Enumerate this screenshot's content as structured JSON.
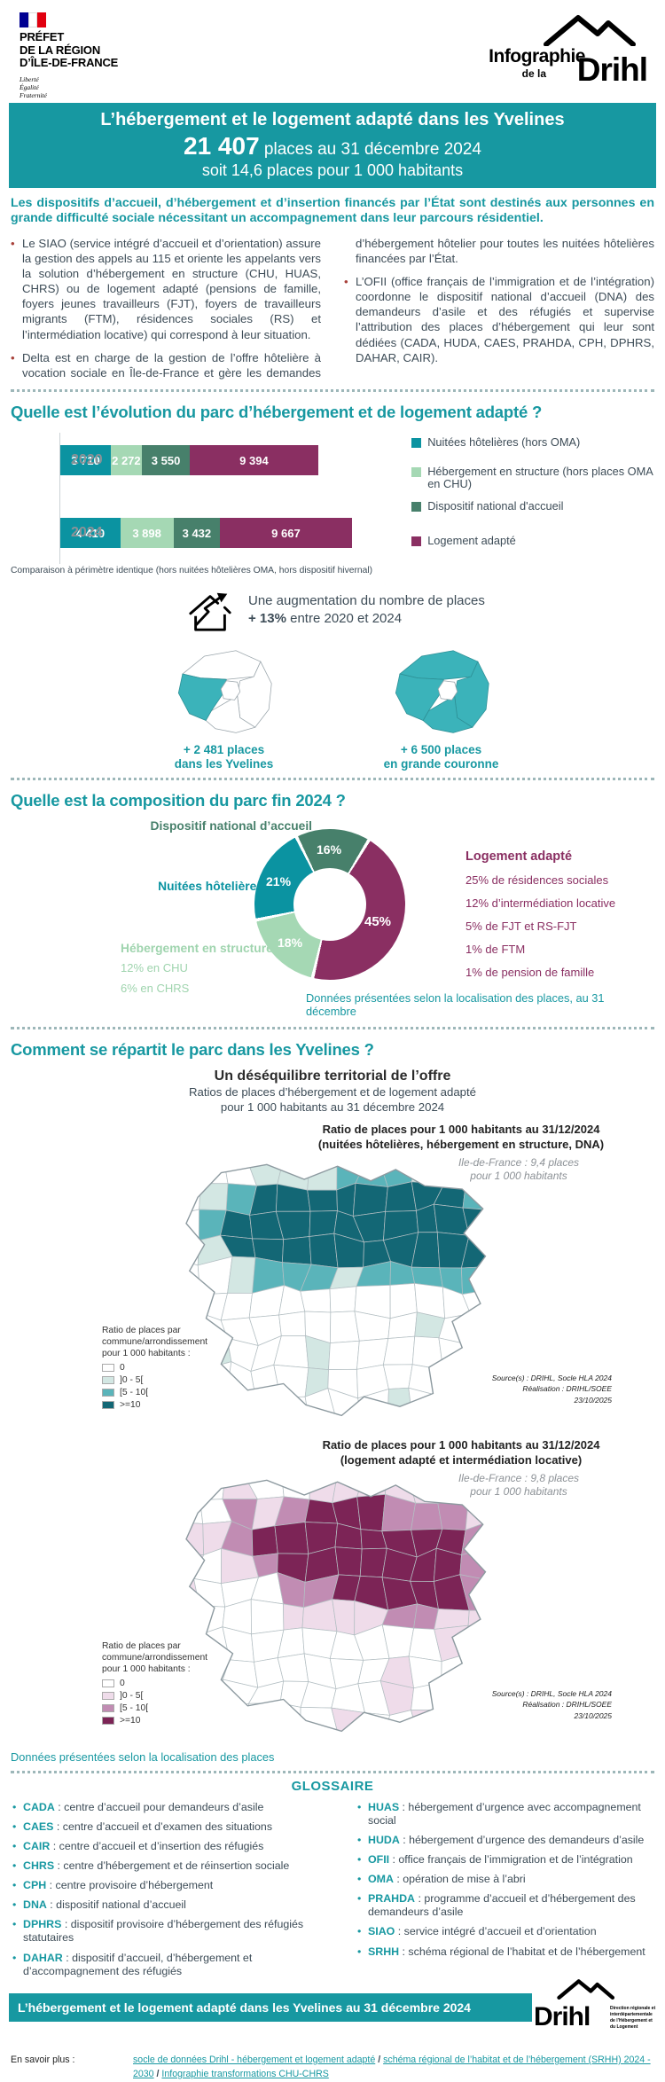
{
  "colors": {
    "teal": "#1798a1",
    "purple": "#8a2f62",
    "green_dark": "#47806b",
    "green_light": "#a5d8b4",
    "text": "#3d4c57",
    "bullet_red": "#a8413a"
  },
  "header": {
    "prefet_lines": [
      "PRÉFET",
      "DE LA RÉGION",
      "D’ÎLE-DE-FRANCE"
    ],
    "motto": [
      "Liberté",
      "Égalité",
      "Fraternité"
    ],
    "infographie_l1": "Infographie",
    "infographie_l2": "de la",
    "infographie_l3": "Drihl"
  },
  "banner": {
    "title": "L’hébergement et le logement adapté dans les Yvelines",
    "count": "21 407",
    "count_suffix": " places au 31 décembre 2024",
    "subtitle": "soit 14,6 places pour 1 000 habitants"
  },
  "intro": {
    "lead": "Les dispositifs d’accueil, d’hébergement et d’insertion financés par l’État sont destinés aux personnes en grande difficulté sociale nécessitant un accompagnement dans leur parcours résidentiel.",
    "bullets": [
      "Le SIAO (service intégré d’accueil et d’orientation) assure la gestion des appels au 115 et oriente les appelants vers la solution d’hébergement en structure (CHU, HUAS, CHRS) ou de logement adapté (pensions de famille, foyers jeunes travailleurs (FJT), foyers de travailleurs migrants (FTM), résidences sociales (RS) et l’intermédiation locative) qui correspond à leur situation.",
      "Delta est en charge de la gestion de l’offre hôtelière à vocation sociale en Île-de-France et gère les demandes d’hébergement hôtelier pour toutes les nuitées hôtelières financées par l’État.",
      "L’OFII (office français de l’immigration et de l’intégration) coordonne le dispositif national d’accueil (DNA) des demandeurs d’asile et des réfugiés et supervise l’attribution des places d’hébergement qui leur sont dédiées (CADA, HUDA, CAES, PRAHDA, CPH, DPHRS, DAHAR, CAIR)."
    ]
  },
  "section_evolution": {
    "title": "Quelle est l’évolution du parc d’hébergement et de logement adapté ?",
    "rows": [
      {
        "year": "2020",
        "values": [
          "3 710",
          "2 272",
          "3 550",
          "9 394"
        ]
      },
      {
        "year": "2024",
        "values": [
          "4 410",
          "3 898",
          "3 432",
          "9 667"
        ]
      }
    ],
    "legend": [
      "Nuitées hôtelières (hors OMA)",
      "Hébergement en structure (hors places OMA en CHU)",
      "Dispositif national d'accueil",
      "Logement adapté"
    ],
    "note": "Comparaison à périmètre identique (hors nuitées hôtelières OMA, hors dispositif hivernal)",
    "increase_line1": "Une augmentation du nombre de places",
    "increase_bold": "+ 13%",
    "increase_rest": " entre 2020 et 2024",
    "map_stats": [
      {
        "value": "+ 2 481 places",
        "label": "dans les Yvelines"
      },
      {
        "value": "+ 6 500 places",
        "label": "en grande couronne"
      }
    ]
  },
  "section_composition": {
    "title": "Quelle est la composition du parc fin 2024 ?",
    "label_dna": "Dispositif national d’accueil",
    "label_hotel": "Nuitées hôtelières",
    "label_structure": "Hébergement en structure",
    "structure_sub": [
      "12% en CHU",
      "6% en CHRS"
    ],
    "label_adapted": "Logement adapté",
    "adapted_sub": [
      "25% de résidences sociales",
      "12% d’intermédiation locative",
      "5% de FJT et RS-FJT",
      "1% de FTM",
      "1% de pension de famille"
    ],
    "pct": {
      "dna": "16%",
      "hotel": "21%",
      "structure": "18%",
      "adapted": "45%"
    },
    "note": "Données présentées selon la localisation des places, au 31 décembre"
  },
  "section_distribution": {
    "title": "Comment se répartit le parc dans les Yvelines ?",
    "block_title": "Un déséquilibre territorial de l’offre",
    "block_sub_1": "Ratios de places d’hébergement et de logement adapté",
    "block_sub_2": "pour 1 000 habitants au 31 décembre 2024",
    "maps": [
      {
        "title_1": "Ratio de places pour 1 000 habitants au 31/12/2024",
        "title_2": "(nuitées hôtelières, hébergement en structure, DNA)",
        "idf_note_1": "Ile-de-France : 9,4 places",
        "idf_note_2": "pour 1 000 habitants",
        "legend_title_1": "Ratio de places par",
        "legend_title_2": "commune/arrondissement",
        "legend_title_3": "pour 1 000 habitants :",
        "classes": [
          "0",
          "]0 - 5[",
          "[5 - 10[",
          ">=10"
        ],
        "palette": [
          "#ffffff",
          "#d3e7e3",
          "#5ab4ba",
          "#136775"
        ],
        "source_1": "Source(s) : DRIHL, Socle HLA 2024",
        "source_2": "Réalisation : DRIHL/SOEE",
        "source_3": "23/10/2025"
      },
      {
        "title_1": "Ratio de places pour 1 000 habitants au 31/12/2024",
        "title_2": "(logement adapté et intermédiation locative)",
        "idf_note_1": "Ile-de-France : 9,8 places",
        "idf_note_2": "pour 1 000 habitants",
        "legend_title_1": "Ratio de places par",
        "legend_title_2": "commune/arrondissement",
        "legend_title_3": "pour 1 000 habitants :",
        "classes": [
          "0",
          "]0 - 5[",
          "[5 - 10[",
          ">=10"
        ],
        "palette": [
          "#ffffff",
          "#efdcea",
          "#c18cb3",
          "#7c2456"
        ],
        "source_1": "Source(s) : DRIHL, Socle HLA 2024",
        "source_2": "Réalisation : DRIHL/SOEE",
        "source_3": "23/10/2025"
      }
    ],
    "note": "Données présentées selon la localisation des places"
  },
  "glossary": {
    "title": "GLOSSAIRE",
    "left": [
      {
        "term": "CADA",
        "def": " : centre d’accueil pour demandeurs d’asile"
      },
      {
        "term": "CAES",
        "def": " : centre d’accueil et d’examen des situations"
      },
      {
        "term": "CAIR",
        "def": " : centre d’accueil et d’insertion des réfugiés"
      },
      {
        "term": "CHRS",
        "def": " : centre d’hébergement et de réinsertion sociale"
      },
      {
        "term": "CPH",
        "def": " : centre provisoire d’hébergement"
      },
      {
        "term": "DNA",
        "def": " : dispositif national d’accueil"
      },
      {
        "term": "DPHRS",
        "def": " : dispositif provisoire d’hébergement des réfugiés statutaires"
      },
      {
        "term": "DAHAR",
        "def": " : dispositif d’accueil, d’hébergement et d’accompagnement des réfugiés"
      }
    ],
    "right": [
      {
        "term": "HUAS",
        "def": " : hébergement d’urgence avec accompagnement social"
      },
      {
        "term": "HUDA",
        "def": " : hébergement d’urgence des demandeurs d’asile"
      },
      {
        "term": "OFII",
        "def": " : office français de l’immigration et de l’intégration"
      },
      {
        "term": "OMA",
        "def": " : opération de mise à l’abri"
      },
      {
        "term": "PRAHDA",
        "def": " : programme d’accueil et d’hébergement des demandeurs d’asile"
      },
      {
        "term": "SIAO",
        "def": " : service intégré d’accueil et d’orientation"
      },
      {
        "term": "SRHH",
        "def": " : schéma régional de l’habitat et de l’hébergement"
      }
    ]
  },
  "footer": {
    "banner": "L’hébergement et le logement adapté dans les Yvelines au 31 décembre 2024",
    "drihl_name": "Drihl",
    "drihl_small": "Direction régionale et interdépartementale de l’Hébergement et du Logement",
    "more_prefix": "En savoir plus :",
    "links": [
      "socle de données Drihl - hébergement et logement adapté",
      "schéma régional de l’habitat et de l’hébergement (SRHH) 2024 - 2030",
      "Infographie transformations CHU-CHRS"
    ],
    "link_sep": " / "
  },
  "chart_data": [
    {
      "type": "bar",
      "orientation": "horizontal",
      "stacked": true,
      "categories": [
        "2020",
        "2024"
      ],
      "series": [
        {
          "name": "Nuitées hôtelières (hors OMA)",
          "color": "#0b93a1",
          "values": [
            3710,
            4410
          ]
        },
        {
          "name": "Hébergement en structure (hors places OMA en CHU)",
          "color": "#a5d8b4",
          "values": [
            2272,
            3898
          ]
        },
        {
          "name": "Dispositif national d'accueil",
          "color": "#47806b",
          "values": [
            3550,
            3432
          ]
        },
        {
          "name": "Logement adapté",
          "color": "#8a2f62",
          "values": [
            9394,
            9667
          ]
        }
      ],
      "totals": [
        18926,
        21407
      ],
      "note": "Comparaison à périmètre identique (hors nuitées hôtelières OMA, hors dispositif hivernal)",
      "legend_position": "right"
    },
    {
      "type": "pie",
      "subtype": "donut",
      "start_angle_deg": 30,
      "slices": [
        {
          "label": "Logement adapté",
          "value": 45,
          "color": "#8a2f62"
        },
        {
          "label": "Hébergement en structure",
          "value": 18,
          "color": "#a5d8b4"
        },
        {
          "label": "Nuitées hôtelières",
          "value": 21,
          "color": "#0b93a1"
        },
        {
          "label": "Dispositif national d'accueil",
          "value": 16,
          "color": "#47806b"
        }
      ],
      "title": "Quelle est la composition du parc fin 2024 ?"
    }
  ]
}
